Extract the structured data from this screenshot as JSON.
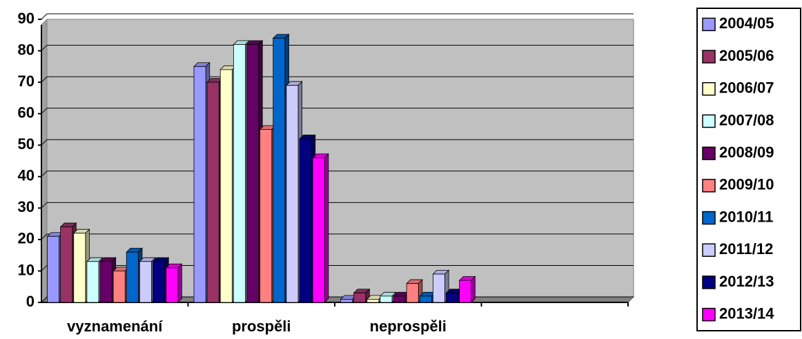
{
  "chart_data": {
    "type": "bar3d",
    "categories": [
      "vyznamenání",
      "prospěli",
      "neprospěli",
      null
    ],
    "series": [
      {
        "name": "2004/05",
        "color": "#9999ff",
        "values": [
          21,
          75,
          1,
          null
        ]
      },
      {
        "name": "2005/06",
        "color": "#993366",
        "values": [
          24,
          70,
          3,
          null
        ]
      },
      {
        "name": "2006/07",
        "color": "#ffffcc",
        "values": [
          22,
          74,
          1,
          null
        ]
      },
      {
        "name": "2007/08",
        "color": "#ccffff",
        "values": [
          13,
          82,
          2,
          null
        ]
      },
      {
        "name": "2008/09",
        "color": "#660066",
        "values": [
          13,
          82,
          2,
          null
        ]
      },
      {
        "name": "2009/10",
        "color": "#ff8080",
        "values": [
          10,
          55,
          6,
          null
        ]
      },
      {
        "name": "2010/11",
        "color": "#0066cc",
        "values": [
          16,
          84,
          2,
          null
        ]
      },
      {
        "name": "2011/12",
        "color": "#ccccff",
        "values": [
          13,
          69,
          9,
          null
        ]
      },
      {
        "name": "2012/13",
        "color": "#000080",
        "values": [
          13,
          52,
          3,
          null
        ]
      },
      {
        "name": "2013/14",
        "color": "#ff00ff",
        "values": [
          11,
          46,
          7,
          null
        ]
      }
    ],
    "ylim": [
      0,
      90
    ],
    "yticks": [
      0,
      10,
      20,
      30,
      40,
      50,
      60,
      70,
      80,
      90
    ],
    "grid": true,
    "legend": "right"
  }
}
